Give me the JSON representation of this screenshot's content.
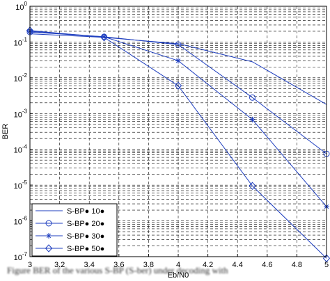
{
  "chart_data": {
    "type": "line",
    "title": "",
    "xlabel": "Eb/N0",
    "ylabel": "BER",
    "x_axis": {
      "min": 3,
      "max": 5,
      "ticks": [
        "3",
        "3.2",
        "3.4",
        "3.6",
        "3.8",
        "4",
        "4.2",
        "4.4",
        "4.6",
        "4.8",
        "5"
      ]
    },
    "y_axis": {
      "scale": "log",
      "min": 1e-07,
      "max": 1,
      "tick_exponents": [
        "0",
        "-1",
        "-2",
        "-3",
        "-4",
        "-5",
        "-6",
        "-7"
      ]
    },
    "grid": true,
    "grid_style": "dashed",
    "legend_position": "bottom-left",
    "series": [
      {
        "name": "S-BP● 10●",
        "marker": "none",
        "color": "#1f3fbf",
        "x": [
          3,
          3.5,
          4,
          4.5,
          5
        ],
        "y": [
          0.17,
          0.135,
          0.09,
          0.028,
          0.0018
        ]
      },
      {
        "name": "S-BP● 20●",
        "marker": "circle",
        "color": "#1f3fbf",
        "x": [
          3,
          3.5,
          4,
          4.5,
          5
        ],
        "y": [
          0.19,
          0.14,
          0.085,
          0.0028,
          7.5e-05
        ]
      },
      {
        "name": "S-BP● 30●",
        "marker": "star",
        "color": "#1f3fbf",
        "x": [
          3,
          3.5,
          4,
          4.5,
          5
        ],
        "y": [
          0.2,
          0.14,
          0.03,
          0.00068,
          2.5e-06
        ]
      },
      {
        "name": "S-BP● 50●",
        "marker": "diamond",
        "color": "#1f3fbf",
        "x": [
          3,
          3.5,
          4,
          4.5,
          5
        ],
        "y": [
          0.21,
          0.135,
          0.006,
          9.5e-06,
          9e-08
        ]
      }
    ]
  },
  "caption": "Figure BER of the various S-BP (S-ber) under decoding with"
}
